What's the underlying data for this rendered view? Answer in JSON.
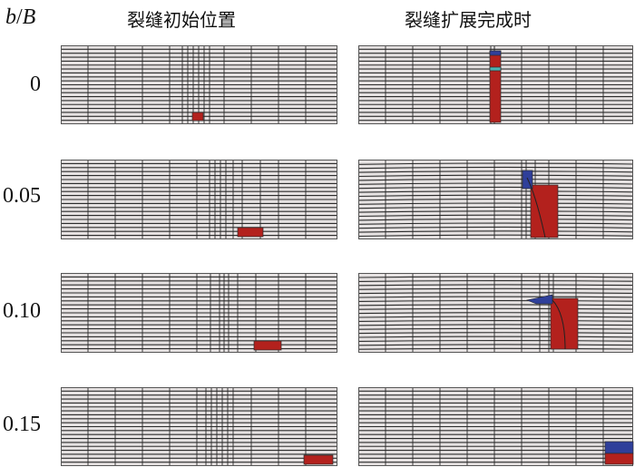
{
  "header": {
    "axis_label_var": "b",
    "axis_label_sep": "/",
    "axis_label_den": "B",
    "col_initial": "裂缝初始位置",
    "col_final": "裂缝扩展完成时"
  },
  "rows": [
    {
      "label": "0"
    },
    {
      "label": "0.05"
    },
    {
      "label": "0.10"
    },
    {
      "label": "0.15"
    }
  ],
  "colors": {
    "mesh_bg": "#e6e2e2",
    "grid_line": "#2b2b2b",
    "crack_red": "#b3211d",
    "crack_blue": "#2f3f9a",
    "crack_cyan": "#4fb3b3"
  }
}
